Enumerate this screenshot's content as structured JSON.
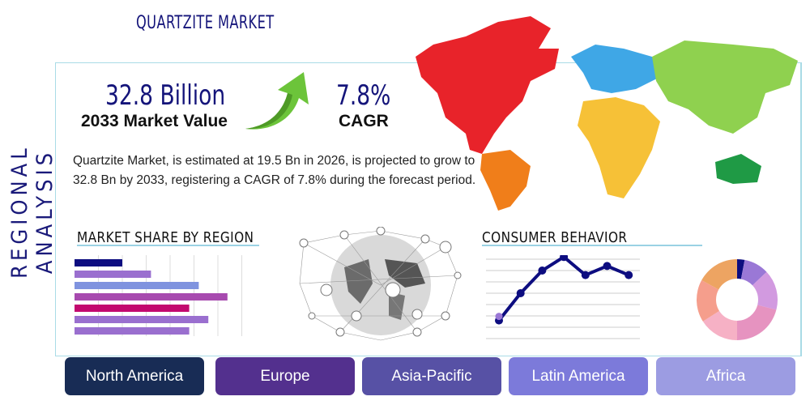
{
  "title": "QUARTZITE MARKET",
  "side_title": "REGIONAL ANALYSIS",
  "market_value": {
    "value": "32.8 Billion",
    "label": "2033 Market Value"
  },
  "cagr": {
    "value": "7.8%",
    "label": "CAGR"
  },
  "description": "Quartzite Market, is estimated at 19.5 Bn in 2026, is projected to grow to 32.8 Bn by 2033, registering a CAGR of 7.8% during the forecast period.",
  "market_share": {
    "title": "MARKET SHARE BY REGION",
    "bars": [
      {
        "value": 2,
        "color": "#0d0d80"
      },
      {
        "value": 3.2,
        "color": "#9a6fcf"
      },
      {
        "value": 5.2,
        "color": "#7f93df"
      },
      {
        "value": 6.4,
        "color": "#a74aaf"
      },
      {
        "value": 4.8,
        "color": "#c3096f"
      },
      {
        "value": 5.6,
        "color": "#9a6fcf"
      },
      {
        "value": 4.8,
        "color": "#9a6fcf"
      }
    ]
  },
  "consumer_behavior": {
    "title": "CONSUMER BEHAVIOR",
    "line": [
      1.6,
      4,
      6,
      7.2,
      5.6,
      6.4,
      5.6
    ],
    "donut": [
      {
        "value": 3,
        "color": "#0d0d80"
      },
      {
        "value": 10,
        "color": "#9a78d6"
      },
      {
        "value": 16,
        "color": "#d29ae0"
      },
      {
        "value": 21,
        "color": "#e693c0"
      },
      {
        "value": 16,
        "color": "#f6b1c5"
      },
      {
        "value": 17,
        "color": "#f59e8c"
      },
      {
        "value": 17,
        "color": "#eda462"
      }
    ]
  },
  "regions": [
    {
      "label": "North America",
      "color": "#182c55"
    },
    {
      "label": "Europe",
      "color": "#53308e"
    },
    {
      "label": "Asia-Pacific",
      "color": "#5751a5"
    },
    {
      "label": "Latin America",
      "color": "#7c7ada"
    },
    {
      "label": "Africa",
      "color": "#9c9ce2"
    }
  ]
}
